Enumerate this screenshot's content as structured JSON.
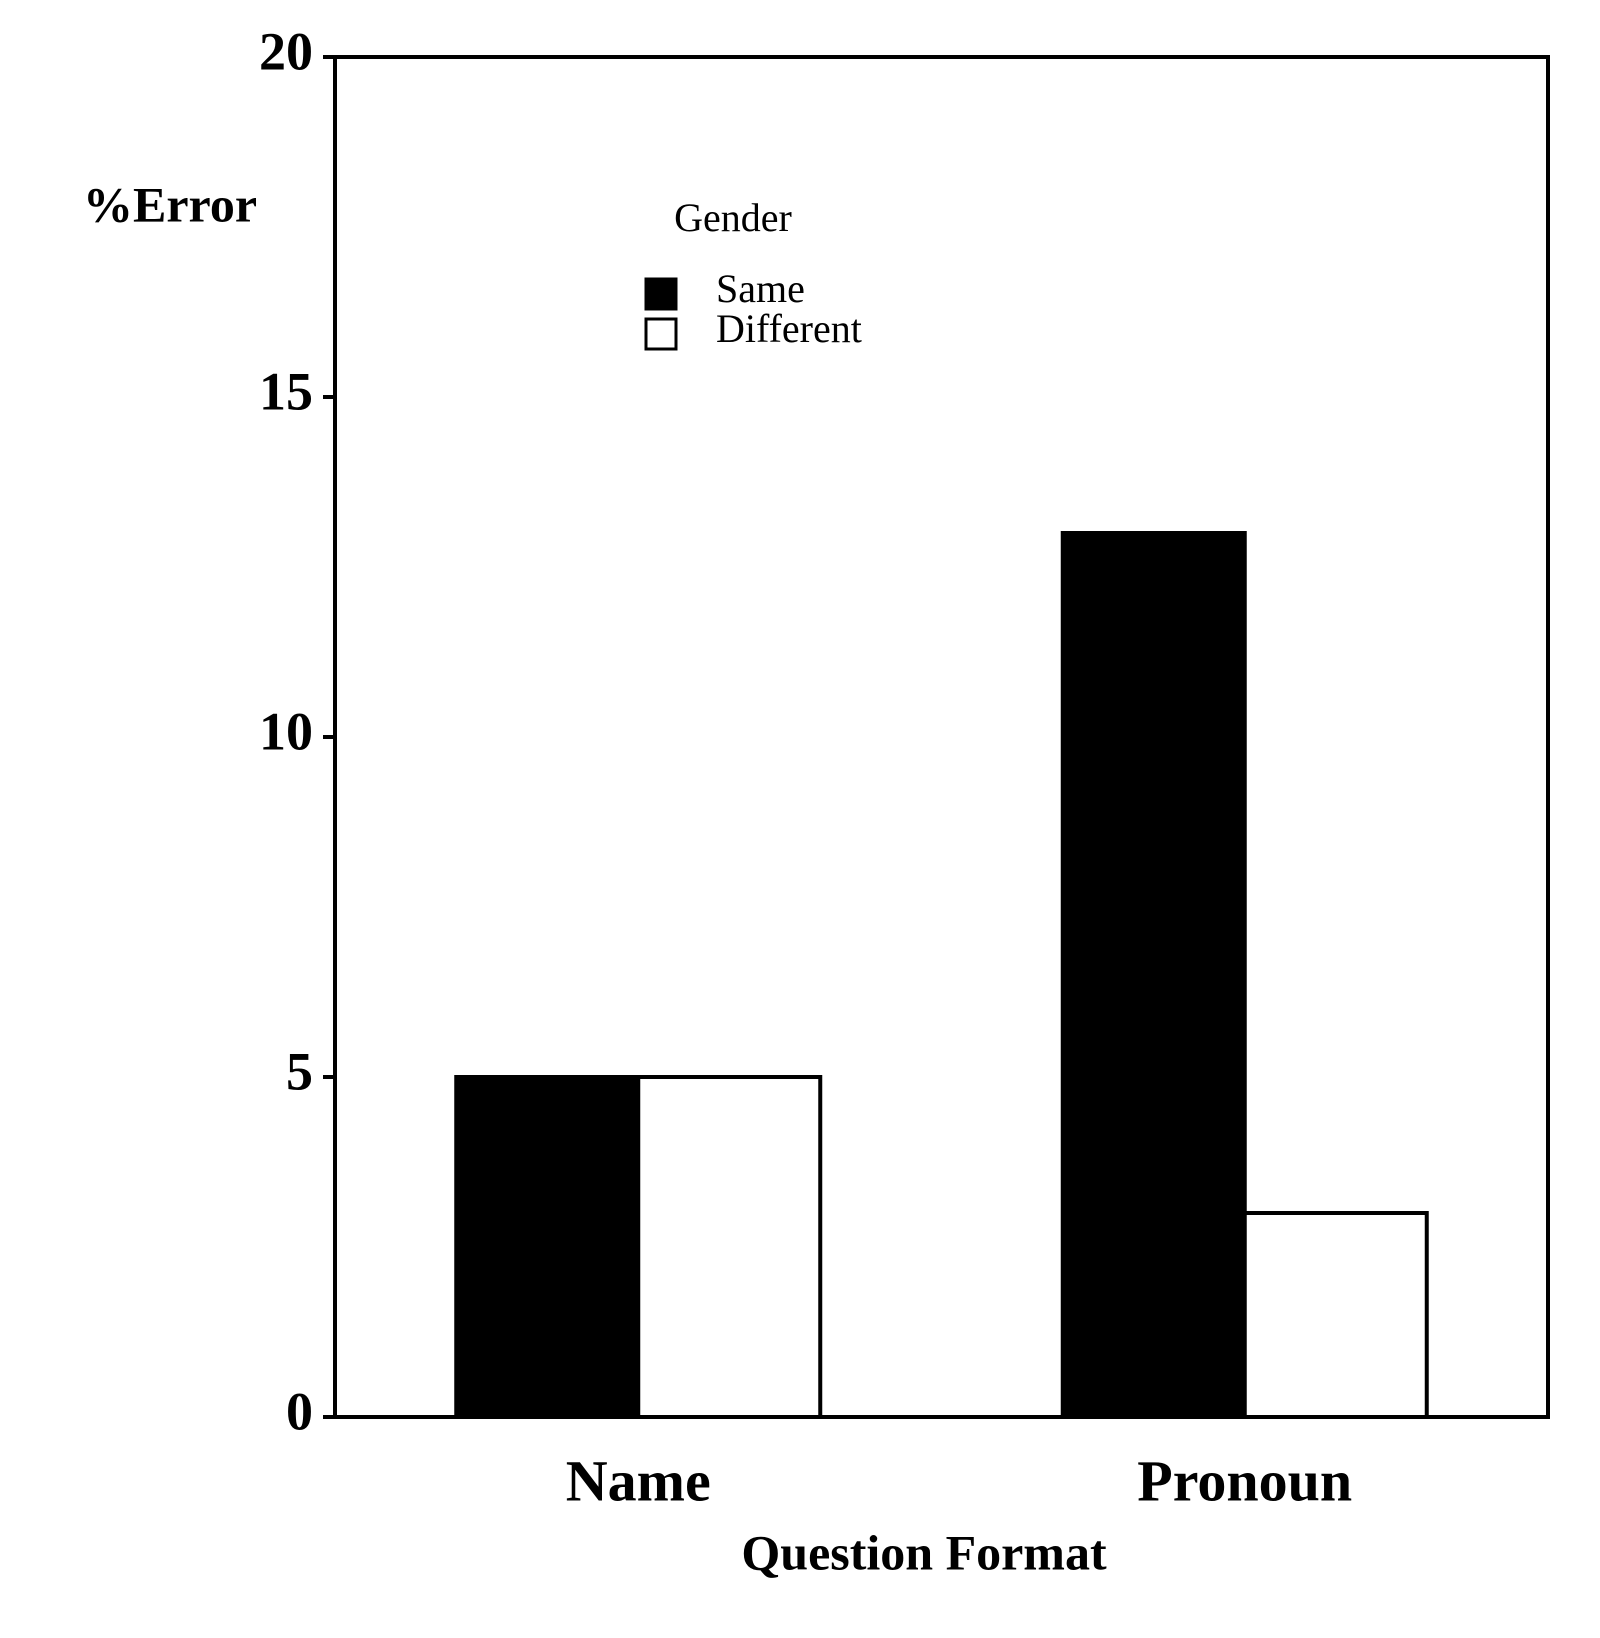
{
  "chart_data": {
    "type": "bar",
    "y_label": "%Error",
    "x_label": "Question Format",
    "legend_title": "Gender",
    "categories": [
      "Name",
      "Pronoun"
    ],
    "series": [
      {
        "name": "Same",
        "color": "#000000",
        "values": [
          5,
          13
        ]
      },
      {
        "name": "Different",
        "color": "#ffffff",
        "values": [
          5,
          3
        ]
      }
    ],
    "ylim": [
      0,
      20
    ],
    "yticks": [
      0,
      5,
      10,
      15,
      20
    ],
    "grid": false
  }
}
